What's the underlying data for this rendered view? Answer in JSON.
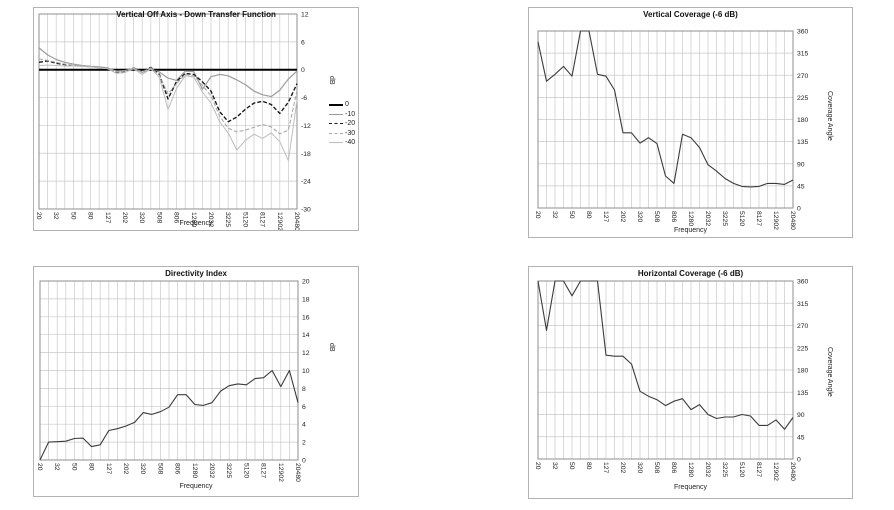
{
  "x_axis": {
    "label": "Frequency",
    "tick_labels": [
      "20",
      "32",
      "50",
      "80",
      "127",
      "202",
      "320",
      "508",
      "806",
      "1280",
      "2032",
      "3225",
      "5120",
      "8127",
      "12902",
      "20480"
    ],
    "scale": "log"
  },
  "chart_data": [
    {
      "type": "line",
      "title": "Vertical Off Axis - Down Transfer Function",
      "xlabel": "Frequency",
      "ylabel": "dB",
      "ylim": [
        -30,
        12
      ],
      "y_ticks": [
        "12",
        "6",
        "0",
        "-6",
        "-12",
        "-18",
        "-24",
        "-30"
      ],
      "x_tick_labels": [
        "20",
        "32",
        "50",
        "80",
        "127",
        "202",
        "320",
        "508",
        "806",
        "1280",
        "2032",
        "3225",
        "5120",
        "8127",
        "12902",
        "20480"
      ],
      "x_values": [
        20,
        25,
        32,
        40,
        50,
        64,
        80,
        101,
        127,
        160,
        202,
        254,
        320,
        403,
        508,
        640,
        806,
        1016,
        1280,
        1613,
        2032,
        2560,
        3225,
        4064,
        5120,
        6451,
        8127,
        10240,
        12902,
        16255,
        20480
      ],
      "grid": true,
      "legend_position": "right",
      "series": [
        {
          "name": "0",
          "color": "#000000",
          "dash": "",
          "width": 2,
          "values": [
            0,
            0,
            0,
            0,
            0,
            0,
            0,
            0,
            0,
            0,
            0,
            0,
            0,
            0,
            0,
            0,
            0,
            0,
            0,
            0,
            0,
            0,
            0,
            0,
            0,
            0,
            0,
            0,
            0,
            0,
            0
          ]
        },
        {
          "name": "-10",
          "color": "#9c9c9c",
          "dash": "",
          "width": 1.2,
          "values": [
            4.7,
            3.2,
            2.2,
            1.6,
            1.2,
            0.9,
            0.7,
            0.6,
            0.4,
            -0.3,
            -0.2,
            0.3,
            -0.6,
            0.2,
            -0.5,
            -1.8,
            -2.3,
            -0.3,
            -0.4,
            -4.2,
            -1.5,
            -1.0,
            -1.3,
            -2.2,
            -3.2,
            -4.6,
            -5.4,
            -5.8,
            -4.4,
            -2.0,
            -0.3
          ]
        },
        {
          "name": "-20",
          "color": "#1a1a1a",
          "dash": "4,2",
          "width": 1.4,
          "values": [
            1.6,
            1.9,
            1.4,
            1.1,
            0.9,
            0.8,
            0.7,
            0.5,
            0.3,
            -0.6,
            -0.4,
            0.4,
            -0.4,
            0.5,
            -1.0,
            -6.3,
            -2.5,
            -0.8,
            -1.0,
            -2.6,
            -4.6,
            -9.0,
            -11.2,
            -10.2,
            -8.5,
            -7.2,
            -6.8,
            -7.5,
            -9.4,
            -7.0,
            -3.0
          ]
        },
        {
          "name": "-30",
          "color": "#ababab",
          "dash": "4,2",
          "width": 1.1,
          "values": [
            2.3,
            2.0,
            1.6,
            1.2,
            1.0,
            0.9,
            0.8,
            0.6,
            0.4,
            -0.5,
            -0.3,
            0.4,
            -0.5,
            0.4,
            -1.2,
            -5.2,
            -3.0,
            -1.0,
            -1.3,
            -3.4,
            -5.6,
            -10.0,
            -12.6,
            -13.4,
            -13.0,
            -12.4,
            -11.8,
            -12.3,
            -13.8,
            -13.0,
            -4.5
          ]
        },
        {
          "name": "-40",
          "color": "#bdbdbd",
          "dash": "",
          "width": 1,
          "values": [
            0.9,
            1.0,
            0.9,
            0.8,
            0.8,
            0.7,
            0.6,
            0.4,
            0.2,
            -0.8,
            -0.6,
            0.2,
            -1.0,
            0.2,
            -1.6,
            -8.6,
            -4.0,
            -1.3,
            -1.6,
            -4.8,
            -7.2,
            -11.2,
            -13.6,
            -17.3,
            -15.2,
            -13.9,
            -14.8,
            -13.6,
            -15.5,
            -19.6,
            -6.5
          ]
        }
      ]
    },
    {
      "type": "line",
      "title": "Vertical Coverage (-6 dB)",
      "xlabel": "Frequency",
      "ylabel": "Coverage Angle",
      "ylim": [
        0,
        360
      ],
      "y_ticks": [
        "360",
        "315",
        "270",
        "225",
        "180",
        "135",
        "90",
        "45",
        "0"
      ],
      "x_tick_labels": [
        "20",
        "32",
        "50",
        "80",
        "127",
        "202",
        "320",
        "508",
        "806",
        "1280",
        "2032",
        "3225",
        "5120",
        "8127",
        "12902",
        "20480"
      ],
      "x_values": [
        20,
        25,
        32,
        40,
        50,
        64,
        80,
        101,
        127,
        160,
        202,
        254,
        320,
        403,
        508,
        640,
        806,
        1016,
        1280,
        1613,
        2032,
        2560,
        3225,
        4064,
        5120,
        6451,
        8127,
        10240,
        12902,
        16255,
        20480
      ],
      "grid": true,
      "legend_position": "none",
      "series": [
        {
          "name": "Vertical Coverage",
          "color": "#3c3c3c",
          "dash": "",
          "width": 1.1,
          "values": [
            338,
            258,
            272,
            288,
            268,
            360,
            360,
            272,
            268,
            240,
            153,
            153,
            132,
            143,
            131,
            65,
            50,
            150,
            143,
            123,
            88,
            75,
            60,
            50,
            44,
            43,
            44,
            50,
            50,
            48,
            57
          ]
        }
      ]
    },
    {
      "type": "line",
      "title": "Directivity Index",
      "xlabel": "Frequency",
      "ylabel": "dB",
      "ylim": [
        0,
        20
      ],
      "y_ticks": [
        "20",
        "18",
        "16",
        "14",
        "12",
        "10",
        "8",
        "6",
        "4",
        "2",
        "0"
      ],
      "x_tick_labels": [
        "20",
        "32",
        "50",
        "80",
        "127",
        "202",
        "320",
        "508",
        "806",
        "1280",
        "2032",
        "3225",
        "5120",
        "8127",
        "12902",
        "20480"
      ],
      "x_values": [
        20,
        25,
        32,
        40,
        50,
        64,
        80,
        101,
        127,
        160,
        202,
        254,
        320,
        403,
        508,
        640,
        806,
        1016,
        1280,
        1613,
        2032,
        2560,
        3225,
        4064,
        5120,
        6451,
        8127,
        10240,
        12902,
        16255,
        20480
      ],
      "grid": true,
      "legend_position": "none",
      "series": [
        {
          "name": "Directivity Index",
          "color": "#3c3c3c",
          "dash": "",
          "width": 1.1,
          "values": [
            0,
            2.0,
            2.05,
            2.1,
            2.4,
            2.45,
            1.5,
            1.7,
            3.3,
            3.5,
            3.8,
            4.2,
            5.3,
            5.1,
            5.4,
            5.9,
            7.3,
            7.3,
            6.2,
            6.1,
            6.4,
            7.7,
            8.3,
            8.5,
            8.4,
            9.1,
            9.2,
            10.0,
            8.2,
            10.0,
            6.4
          ]
        }
      ]
    },
    {
      "type": "line",
      "title": "Horizontal Coverage (-6 dB)",
      "xlabel": "Frequency",
      "ylabel": "Coverage Angle",
      "ylim": [
        0,
        360
      ],
      "y_ticks": [
        "360",
        "315",
        "270",
        "225",
        "180",
        "135",
        "90",
        "45",
        "0"
      ],
      "x_tick_labels": [
        "20",
        "32",
        "50",
        "80",
        "127",
        "202",
        "320",
        "508",
        "806",
        "1280",
        "2032",
        "3225",
        "5120",
        "8127",
        "12902",
        "20480"
      ],
      "x_values": [
        20,
        25,
        32,
        40,
        50,
        64,
        80,
        101,
        127,
        160,
        202,
        254,
        320,
        403,
        508,
        640,
        806,
        1016,
        1280,
        1613,
        2032,
        2560,
        3225,
        4064,
        5120,
        6451,
        8127,
        10240,
        12902,
        16255,
        20480
      ],
      "grid": true,
      "legend_position": "none",
      "series": [
        {
          "name": "Horizontal Coverage",
          "color": "#3c3c3c",
          "dash": "",
          "width": 1.1,
          "values": [
            360,
            260,
            360,
            360,
            330,
            360,
            360,
            360,
            210,
            208,
            208,
            192,
            137,
            127,
            120,
            108,
            117,
            122,
            100,
            110,
            90,
            82,
            85,
            85,
            90,
            87,
            68,
            68,
            79,
            60,
            84
          ]
        }
      ]
    }
  ],
  "style": {
    "grid_color": "#c9c9c9",
    "plot_border_color": "#8f8f8f",
    "panel_border_color": "#b3b3b3",
    "tick_text_color": "#222222"
  }
}
